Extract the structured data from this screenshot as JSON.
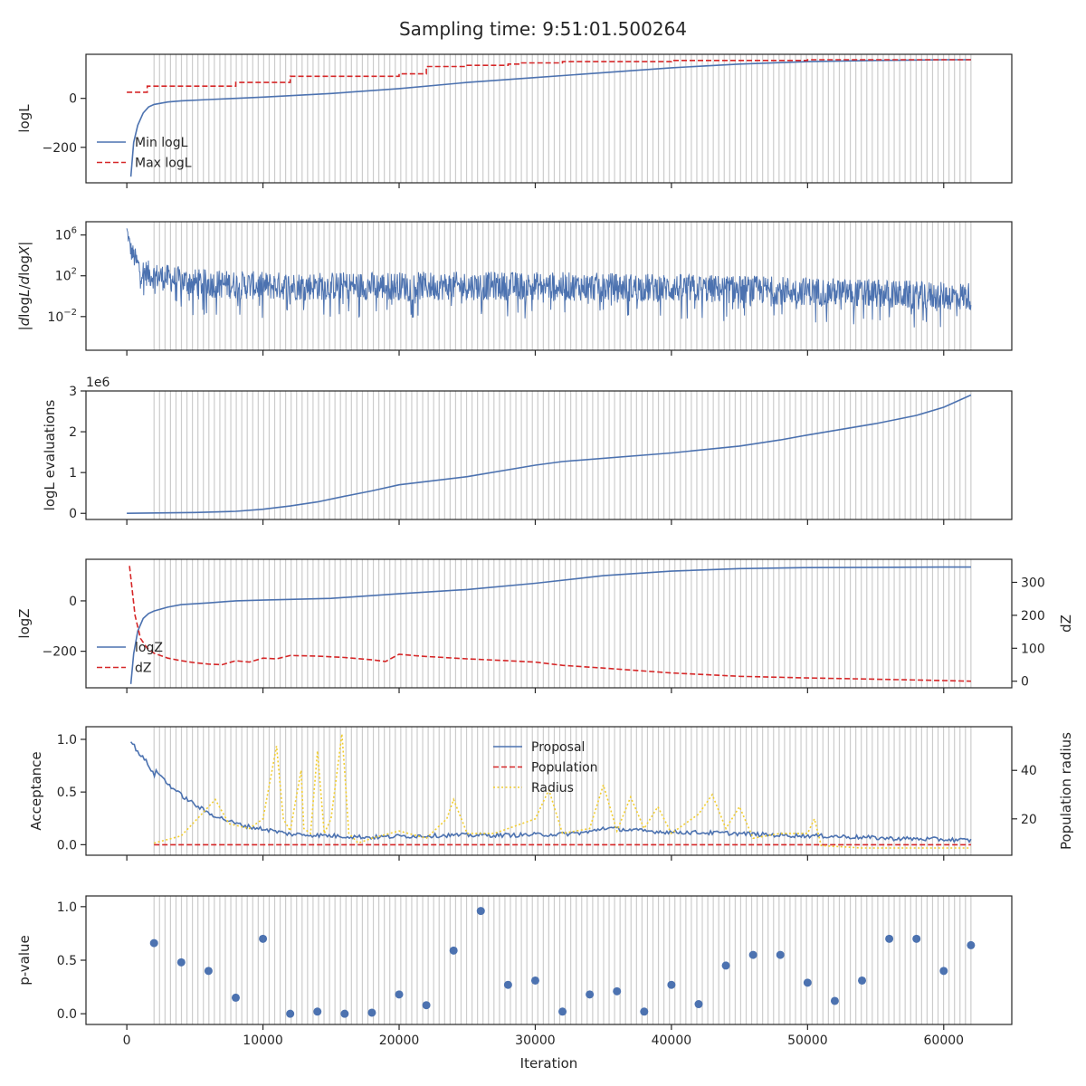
{
  "figure": {
    "title": "Sampling time: 9:51:01.500264",
    "xlabel": "Iteration",
    "xticks": [
      0,
      10000,
      20000,
      30000,
      40000,
      50000,
      60000
    ],
    "xlim": [
      -3000,
      65000
    ]
  },
  "colors": {
    "blue": "#4c72b0",
    "red": "#d62728",
    "yellow": "#f2cd2f",
    "grid": "#cccccc",
    "text": "#262626"
  },
  "vlines": {
    "start": 2000,
    "end": 62000,
    "count": 150
  },
  "chart_data": [
    {
      "id": "loglike",
      "type": "line",
      "ylabel": "logL",
      "ylim": [
        -345,
        180
      ],
      "yticks": [
        -200,
        0
      ],
      "ytick_labels": [
        "−200",
        "0"
      ],
      "legend": {
        "placement": "lower-left",
        "entries": [
          "Min logL",
          "Max logL"
        ]
      },
      "series": [
        {
          "name": "Min logL",
          "color": "blue",
          "style": "solid",
          "x": [
            300,
            500,
            800,
            1200,
            1600,
            2000,
            3000,
            4000,
            6000,
            8000,
            10000,
            15000,
            20000,
            25000,
            30000,
            35000,
            40000,
            45000,
            50000,
            55000,
            60000,
            62000
          ],
          "y": [
            -320,
            -180,
            -110,
            -60,
            -35,
            -25,
            -15,
            -10,
            -5,
            0,
            5,
            20,
            40,
            65,
            85,
            105,
            125,
            140,
            150,
            155,
            158,
            158
          ]
        },
        {
          "name": "Max logL",
          "color": "red",
          "style": "dashed",
          "step": true,
          "x": [
            0,
            1500,
            1500,
            8000,
            8000,
            12000,
            12000,
            20000,
            20000,
            22000,
            22000,
            25000,
            25000,
            28000,
            28000,
            29000,
            29000,
            32000,
            32000,
            40000,
            40000,
            50000,
            50000,
            62000
          ],
          "y": [
            25,
            25,
            50,
            50,
            65,
            65,
            90,
            90,
            100,
            100,
            130,
            130,
            135,
            135,
            140,
            140,
            145,
            145,
            150,
            150,
            155,
            155,
            158,
            158
          ]
        }
      ]
    },
    {
      "id": "gradient",
      "type": "line",
      "ylabel": "|dlogL/dlogX|",
      "log_scale": true,
      "ylim_exp": [
        -5.3,
        7.3
      ],
      "yticks_exp": [
        6,
        2,
        -2
      ],
      "series": [
        {
          "name": "",
          "color": "blue",
          "style": "noisy",
          "envelope_x": [
            0,
            300,
            1000,
            2000,
            5000,
            10000,
            20000,
            30000,
            40000,
            50000,
            60000,
            62000
          ],
          "center_exp": [
            6.5,
            4.5,
            2.5,
            2.0,
            1.3,
            1.0,
            1.0,
            1.0,
            0.8,
            0.5,
            0.0,
            0.0
          ],
          "spread_exp": [
            0.5,
            1.0,
            1.3,
            1.3,
            1.4,
            1.4,
            1.4,
            1.4,
            1.4,
            1.4,
            1.4,
            1.4
          ]
        }
      ]
    },
    {
      "id": "evaluations",
      "type": "line",
      "ylabel": "logL evaluations",
      "offset_label": "1e6",
      "ylim": [
        -0.15,
        3.0
      ],
      "yticks": [
        0,
        1,
        2,
        3
      ],
      "series": [
        {
          "name": "",
          "color": "blue",
          "style": "solid",
          "x": [
            0,
            5000,
            8000,
            10000,
            12000,
            14000,
            16000,
            18000,
            20000,
            25000,
            30000,
            32000,
            40000,
            45000,
            48000,
            50000,
            55000,
            58000,
            60000,
            62000
          ],
          "y": [
            0,
            0.02,
            0.05,
            0.1,
            0.18,
            0.28,
            0.42,
            0.55,
            0.7,
            0.9,
            1.18,
            1.27,
            1.48,
            1.65,
            1.8,
            1.92,
            2.2,
            2.4,
            2.6,
            2.9
          ]
        }
      ]
    },
    {
      "id": "evidence",
      "type": "line",
      "ylabel": "logZ",
      "ylim": [
        -345,
        165
      ],
      "yticks": [
        -200,
        0
      ],
      "ytick_labels": [
        "−200",
        "0"
      ],
      "ylabel_right": "dZ",
      "ylim_right": [
        -20,
        370
      ],
      "yticks_right": [
        0,
        100,
        200,
        300
      ],
      "legend": {
        "placement": "lower-left",
        "entries": [
          "logZ",
          "dZ"
        ]
      },
      "series": [
        {
          "name": "logZ",
          "color": "blue",
          "style": "solid",
          "axis": "left",
          "x": [
            300,
            500,
            800,
            1200,
            1600,
            2000,
            3000,
            4000,
            6000,
            8000,
            10000,
            15000,
            20000,
            25000,
            30000,
            35000,
            40000,
            45000,
            50000,
            55000,
            60000,
            62000
          ],
          "y": [
            -330,
            -210,
            -120,
            -70,
            -50,
            -40,
            -25,
            -15,
            -8,
            0,
            3,
            10,
            28,
            45,
            70,
            100,
            118,
            128,
            132,
            133,
            134,
            134
          ]
        },
        {
          "name": "dZ",
          "color": "red",
          "style": "dashed",
          "axis": "right",
          "x": [
            200,
            600,
            1000,
            1500,
            2000,
            3000,
            4000,
            5000,
            6000,
            7000,
            8000,
            9000,
            10000,
            11000,
            12000,
            14000,
            16000,
            18000,
            19000,
            20000,
            21000,
            22000,
            25000,
            28000,
            30000,
            32000,
            35000,
            40000,
            45000,
            50000,
            55000,
            60000,
            62000
          ],
          "y": [
            350,
            200,
            130,
            100,
            85,
            70,
            62,
            56,
            52,
            50,
            62,
            58,
            70,
            68,
            78,
            76,
            72,
            65,
            60,
            82,
            78,
            75,
            68,
            62,
            58,
            48,
            40,
            25,
            15,
            10,
            6,
            2,
            0
          ]
        }
      ]
    },
    {
      "id": "acceptance",
      "type": "line",
      "ylabel": "Acceptance",
      "ylim": [
        -0.1,
        1.12
      ],
      "yticks": [
        0.0,
        0.5,
        1.0
      ],
      "ytick_labels": [
        "0.0",
        "0.5",
        "1.0"
      ],
      "ylabel_right": "Population radius",
      "ylim_right": [
        5,
        58
      ],
      "yticks_right": [
        20,
        40
      ],
      "legend": {
        "placement": "upper-center",
        "entries": [
          "Proposal",
          "Population",
          "Radius"
        ]
      },
      "series": [
        {
          "name": "Proposal",
          "color": "blue",
          "style": "solid",
          "axis": "left",
          "x": [
            300,
            1000,
            1500,
            2000,
            2200,
            3000,
            4000,
            5000,
            6000,
            7000,
            8000,
            9000,
            10000,
            12000,
            14000,
            16000,
            18000,
            20000,
            24000,
            28000,
            32000,
            34000,
            35000,
            38000,
            40000,
            44000,
            48000,
            52000,
            56000,
            60000,
            62000
          ],
          "y": [
            0.98,
            0.85,
            0.78,
            0.66,
            0.7,
            0.58,
            0.47,
            0.38,
            0.3,
            0.25,
            0.2,
            0.17,
            0.15,
            0.1,
            0.09,
            0.08,
            0.07,
            0.08,
            0.09,
            0.09,
            0.1,
            0.12,
            0.16,
            0.13,
            0.12,
            0.11,
            0.09,
            0.08,
            0.06,
            0.05,
            0.04
          ]
        },
        {
          "name": "Population",
          "color": "red",
          "style": "dashed",
          "axis": "left",
          "x": [
            2000,
            62000
          ],
          "y": [
            0.0,
            0.0
          ]
        },
        {
          "name": "Radius",
          "color": "yellow",
          "style": "dotted",
          "axis": "right",
          "x": [
            2000,
            4000,
            5500,
            6500,
            7500,
            9000,
            10000,
            10500,
            11000,
            11500,
            12000,
            12800,
            13000,
            13500,
            14000,
            14500,
            15000,
            15800,
            16000,
            16300,
            17000,
            18000,
            20000,
            22000,
            23500,
            24000,
            25000,
            27000,
            30000,
            31000,
            32000,
            34000,
            35000,
            36000,
            37000,
            38000,
            39000,
            40000,
            42000,
            43000,
            44000,
            45000,
            46000,
            48000,
            50000,
            50500,
            51000,
            54000,
            62000
          ],
          "y": [
            10,
            13,
            22,
            28,
            18,
            16,
            20,
            35,
            50,
            20,
            15,
            40,
            16,
            14,
            48,
            14,
            20,
            55,
            40,
            14,
            10,
            12,
            15,
            12,
            20,
            28,
            14,
            14,
            20,
            32,
            14,
            16,
            34,
            15,
            29,
            16,
            25,
            14,
            22,
            30,
            16,
            25,
            12,
            14,
            14,
            20,
            9,
            8,
            8
          ]
        }
      ]
    },
    {
      "id": "pvalue",
      "type": "scatter",
      "ylabel": "p-value",
      "ylim": [
        -0.1,
        1.1
      ],
      "yticks": [
        0.0,
        0.5,
        1.0
      ],
      "ytick_labels": [
        "0.0",
        "0.5",
        "1.0"
      ],
      "series": [
        {
          "name": "",
          "color": "blue",
          "style": "marker",
          "x": [
            2000,
            4000,
            6000,
            8000,
            10000,
            12000,
            14000,
            16000,
            18000,
            20000,
            22000,
            24000,
            26000,
            28000,
            30000,
            32000,
            34000,
            36000,
            38000,
            40000,
            42000,
            44000,
            46000,
            48000,
            50000,
            52000,
            54000,
            56000,
            58000,
            60000,
            62000
          ],
          "y": [
            0.66,
            0.48,
            0.4,
            0.15,
            0.7,
            0.0,
            0.02,
            0.0,
            0.01,
            0.18,
            0.08,
            0.59,
            0.96,
            0.27,
            0.31,
            0.02,
            0.18,
            0.21,
            0.02,
            0.27,
            0.09,
            0.45,
            0.55,
            0.55,
            0.29,
            0.12,
            0.31,
            0.7,
            0.7,
            0.4,
            0.64
          ]
        }
      ]
    }
  ]
}
